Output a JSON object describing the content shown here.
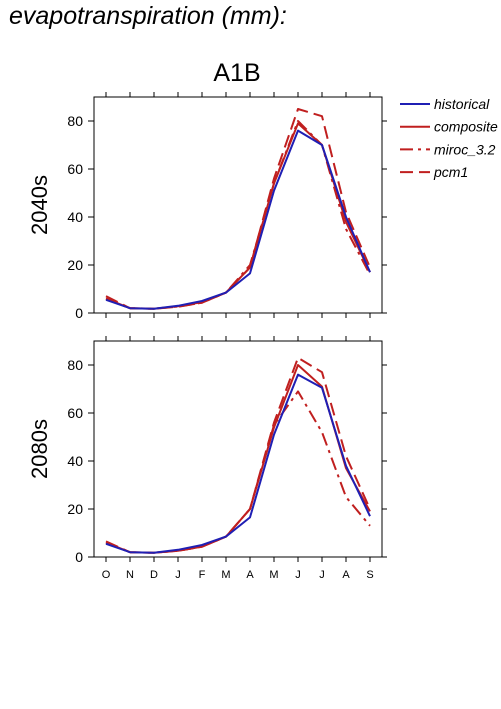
{
  "page_title": "evapotranspiration (mm):",
  "colors": {
    "historical": "#1f1fb4",
    "future": "#c01f1f",
    "axis": "#000000"
  },
  "chart_data": [
    {
      "type": "line",
      "title": "A1B",
      "ylabel": "2040s",
      "xlabel": "",
      "categories": [
        "O",
        "N",
        "D",
        "J",
        "F",
        "M",
        "A",
        "M",
        "J",
        "J",
        "A",
        "S"
      ],
      "ylim": [
        0,
        90
      ],
      "yticks": [
        0,
        20,
        40,
        60,
        80
      ],
      "grid": false,
      "legend_placement": "right-outside",
      "series": [
        {
          "name": "historical",
          "color": "#1f1fb4",
          "dash": "solid",
          "values": [
            5.5,
            2,
            1.8,
            3,
            5,
            8.5,
            16.5,
            51,
            76,
            70,
            40,
            17
          ]
        },
        {
          "name": "composite",
          "color": "#c01f1f",
          "dash": "solid",
          "values": [
            6,
            2,
            1.8,
            2.8,
            4.5,
            8.5,
            19,
            54,
            79,
            70,
            38,
            17
          ]
        },
        {
          "name": "miroc_3.2",
          "color": "#c01f1f",
          "dash": "dashdot",
          "values": [
            6,
            2,
            1.8,
            2.7,
            4.3,
            8.5,
            20,
            54,
            80,
            70,
            35,
            16
          ]
        },
        {
          "name": "pcm1",
          "color": "#c01f1f",
          "dash": "dash",
          "values": [
            7,
            2,
            1.8,
            2.6,
            4.3,
            8.5,
            19,
            56,
            85,
            82,
            42,
            19
          ]
        }
      ]
    },
    {
      "type": "line",
      "title": "",
      "ylabel": "2080s",
      "xlabel": "",
      "categories": [
        "O",
        "N",
        "D",
        "J",
        "F",
        "M",
        "A",
        "M",
        "J",
        "J",
        "A",
        "S"
      ],
      "ylim": [
        0,
        90
      ],
      "yticks": [
        0,
        20,
        40,
        60,
        80
      ],
      "grid": false,
      "series": [
        {
          "name": "historical",
          "color": "#1f1fb4",
          "dash": "solid",
          "values": [
            5.5,
            2,
            1.8,
            3,
            5,
            8.5,
            16.5,
            51,
            76,
            70.5,
            38,
            17
          ]
        },
        {
          "name": "composite",
          "color": "#c01f1f",
          "dash": "solid",
          "values": [
            6,
            2,
            1.8,
            2.6,
            4.3,
            8.5,
            20,
            54,
            80,
            71,
            37,
            19
          ]
        },
        {
          "name": "miroc_3.2",
          "color": "#c01f1f",
          "dash": "dashdot",
          "values": [
            6,
            2,
            1.8,
            2.6,
            4.3,
            8.5,
            20,
            55,
            69,
            52,
            25,
            13
          ]
        },
        {
          "name": "pcm1",
          "color": "#c01f1f",
          "dash": "dash",
          "values": [
            6.5,
            2,
            1.8,
            2.6,
            4.3,
            8.5,
            20,
            56,
            83,
            77,
            42,
            20
          ]
        }
      ]
    }
  ]
}
